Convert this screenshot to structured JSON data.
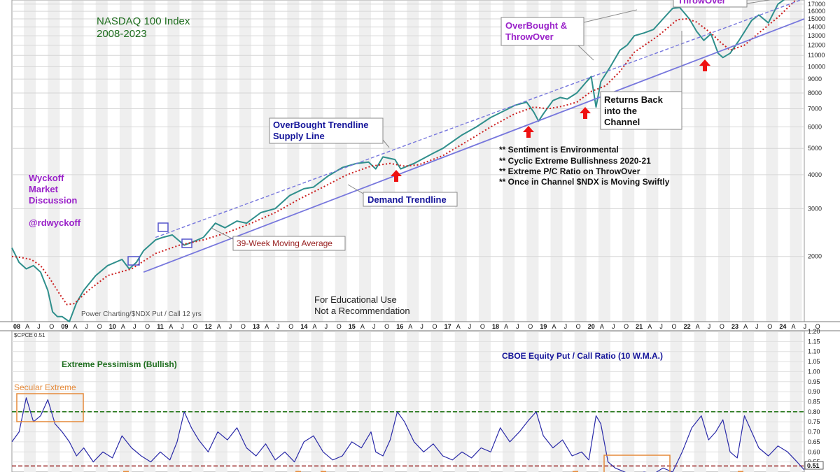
{
  "colors": {
    "title_green": "#1f6e1f",
    "purple": "#9a22c9",
    "navy": "#15159a",
    "price_teal": "#2f8f8c",
    "ma_red": "#cc1f1f",
    "trend_blue": "#7777dd",
    "pc_line": "#2a2aa8",
    "bull_line": "#2b7a1f",
    "bear_line": "#992222",
    "secular_orange": "#e58a3a",
    "arrow_red": "#ee1111"
  },
  "annotations": {
    "title_line1": "NASDAQ 100 Index",
    "title_line2": "2008-2023",
    "wyckoff_line1": "Wyckoff",
    "wyckoff_line2": "Market",
    "wyckoff_line3": "Discussion",
    "handle": "@rdwyckoff",
    "throwover_top": "ThrowOver",
    "overbought_line1": "OverBought &",
    "overbought_line2": "ThrowOver",
    "returns_line1": "Returns Back",
    "returns_line2": "into the",
    "returns_line3": "Channel",
    "supply_line1": "OverBought Trendline",
    "supply_line2": "Supply Line",
    "demand": "Demand Trendline",
    "ma_label": "39-Week Moving Average",
    "notes": [
      "** Sentiment is Environmental",
      "** Cyclic Extreme Bullishness 2020-21",
      "** Extreme P/C Ratio on ThrowOver",
      "** Once in Channel $NDX is Moving Swiftly"
    ],
    "edu_line1": "For Educational Use",
    "edu_line2": "Not a Recommendation",
    "credit": "Power Charting/$NDX Put / Call 12 yrs",
    "lower_title": "CBOE Equity Put / Call Ratio (10 W.M.A.)",
    "pessimism": "Extreme Pessimism (Bullish)",
    "secular": "Secular Extreme",
    "lower_symbol": "$CPCE 0.51",
    "last_value": "0.51"
  },
  "chart_data": [
    {
      "type": "line",
      "name": "NASDAQ 100 Index weekly (log scale)",
      "y_scale": "log",
      "y_ticks": [
        2000,
        3000,
        4000,
        5000,
        6000,
        7000,
        8000,
        9000,
        10000,
        11000,
        12000,
        13000,
        14000,
        15000,
        16000,
        17000
      ],
      "x_tick_labels": [
        "08",
        "A",
        "J",
        "O",
        "09",
        "A",
        "J",
        "O",
        "10",
        "A",
        "J",
        "O",
        "11",
        "A",
        "J",
        "O",
        "12",
        "A",
        "J",
        "O",
        "13",
        "A",
        "J",
        "O",
        "14",
        "A",
        "J",
        "O",
        "15",
        "A",
        "J",
        "O",
        "16",
        "A",
        "J",
        "O",
        "17",
        "A",
        "J",
        "O",
        "18",
        "A",
        "J",
        "O",
        "19",
        "A",
        "J",
        "O",
        "20",
        "A",
        "J",
        "O",
        "21",
        "A",
        "J",
        "O",
        "22",
        "A",
        "J",
        "O",
        "23",
        "A",
        "J",
        "O",
        "24",
        "A",
        "J",
        "O"
      ],
      "x_range": [
        2008.0,
        2024.55
      ],
      "ylim": [
        1150,
        17600
      ],
      "series": [
        {
          "role": "price",
          "x": [
            2008.0,
            2008.15,
            2008.3,
            2008.45,
            2008.6,
            2008.75,
            2008.85,
            2008.95,
            2009.05,
            2009.2,
            2009.35,
            2009.5,
            2009.75,
            2010.0,
            2010.3,
            2010.45,
            2010.6,
            2010.75,
            2011.0,
            2011.15,
            2011.35,
            2011.6,
            2011.75,
            2012.0,
            2012.25,
            2012.45,
            2012.7,
            2012.9,
            2013.2,
            2013.5,
            2013.8,
            2014.1,
            2014.3,
            2014.6,
            2014.9,
            2015.2,
            2015.45,
            2015.6,
            2015.75,
            2016.0,
            2016.12,
            2016.4,
            2016.8,
            2017.0,
            2017.4,
            2017.7,
            2018.0,
            2018.3,
            2018.5,
            2018.75,
            2018.9,
            2019.0,
            2019.1,
            2019.3,
            2019.45,
            2019.6,
            2019.8,
            2020.0,
            2020.1,
            2020.2,
            2020.3,
            2020.5,
            2020.7,
            2020.85,
            2021.0,
            2021.2,
            2021.4,
            2021.6,
            2021.8,
            2021.95,
            2022.15,
            2022.3,
            2022.45,
            2022.6,
            2022.75,
            2022.85,
            2023.0,
            2023.2,
            2023.45,
            2023.6,
            2023.8,
            2024.0,
            2024.2,
            2024.4
          ],
          "y": [
            2150,
            1900,
            1800,
            1850,
            1750,
            1500,
            1250,
            1200,
            1200,
            1150,
            1350,
            1500,
            1700,
            1850,
            1950,
            1800,
            1900,
            2100,
            2300,
            2350,
            2400,
            2200,
            2250,
            2350,
            2650,
            2550,
            2700,
            2650,
            2900,
            3000,
            3350,
            3550,
            3600,
            3950,
            4250,
            4400,
            4450,
            4200,
            4650,
            4550,
            4200,
            4400,
            4800,
            5000,
            5600,
            6000,
            6500,
            6900,
            7200,
            7400,
            6800,
            6300,
            6700,
            7500,
            7700,
            7600,
            8000,
            8800,
            9200,
            7100,
            8800,
            10000,
            11500,
            12000,
            13000,
            13300,
            13700,
            15000,
            16400,
            16500,
            15000,
            13500,
            12500,
            13200,
            11200,
            10800,
            11200,
            12600,
            14800,
            15500,
            14500,
            17000,
            18000,
            19200
          ]
        },
        {
          "role": "39-week moving average",
          "x": [
            2008.0,
            2008.2,
            2008.4,
            2008.6,
            2008.8,
            2009.0,
            2009.15,
            2009.3,
            2009.6,
            2010.0,
            2010.5,
            2011.0,
            2011.5,
            2012.0,
            2012.5,
            2013.0,
            2013.5,
            2014.0,
            2014.5,
            2015.0,
            2015.5,
            2015.9,
            2016.2,
            2016.5,
            2017.0,
            2017.5,
            2018.0,
            2018.5,
            2018.9,
            2019.2,
            2019.5,
            2019.8,
            2020.1,
            2020.4,
            2020.7,
            2021.0,
            2021.5,
            2021.9,
            2022.1,
            2022.3,
            2022.6,
            2022.8,
            2023.0,
            2023.3,
            2023.6,
            2024.0,
            2024.4
          ],
          "y": [
            2000,
            1980,
            1950,
            1850,
            1650,
            1450,
            1330,
            1340,
            1500,
            1700,
            1800,
            2050,
            2200,
            2300,
            2450,
            2650,
            2900,
            3250,
            3600,
            4000,
            4300,
            4400,
            4300,
            4350,
            4700,
            5300,
            6000,
            6700,
            7100,
            7000,
            7150,
            7400,
            8100,
            8500,
            9600,
            11300,
            13000,
            14900,
            15000,
            14600,
            13300,
            12300,
            11500,
            12000,
            13300,
            15200,
            17800
          ]
        },
        {
          "role": "Demand Trendline",
          "x": [
            2010.75,
            2024.55
          ],
          "y": [
            1750,
            15000
          ]
        },
        {
          "role": "OverBought Trendline Supply Line",
          "x": [
            2011.0,
            2024.55
          ],
          "y": [
            2350,
            17800
          ]
        }
      ]
    },
    {
      "type": "line",
      "name": "CBOE Equity Put / Call Ratio (10 W.M.A.)",
      "y_ticks": [
        0.55,
        0.6,
        0.65,
        0.7,
        0.75,
        0.8,
        0.85,
        0.9,
        0.95,
        1.0,
        1.05,
        1.1,
        1.15,
        1.2
      ],
      "ylim": [
        0.5,
        1.2
      ],
      "reference_lines": [
        0.8,
        0.53
      ],
      "x": [
        2008.0,
        2008.15,
        2008.3,
        2008.45,
        2008.6,
        2008.75,
        2008.9,
        2009.05,
        2009.2,
        2009.35,
        2009.5,
        2009.7,
        2009.9,
        2010.1,
        2010.3,
        2010.5,
        2010.7,
        2010.9,
        2011.1,
        2011.3,
        2011.45,
        2011.6,
        2011.75,
        2011.9,
        2012.1,
        2012.3,
        2012.5,
        2012.7,
        2012.9,
        2013.1,
        2013.3,
        2013.5,
        2013.7,
        2013.9,
        2014.1,
        2014.3,
        2014.5,
        2014.7,
        2014.9,
        2015.1,
        2015.3,
        2015.5,
        2015.6,
        2015.75,
        2015.9,
        2016.05,
        2016.2,
        2016.4,
        2016.6,
        2016.8,
        2017.0,
        2017.2,
        2017.4,
        2017.6,
        2017.8,
        2018.0,
        2018.2,
        2018.4,
        2018.6,
        2018.8,
        2018.95,
        2019.1,
        2019.3,
        2019.5,
        2019.7,
        2019.9,
        2020.05,
        2020.2,
        2020.3,
        2020.45,
        2020.6,
        2020.8,
        2021.0,
        2021.2,
        2021.4,
        2021.6,
        2021.8,
        2022.0,
        2022.2,
        2022.4,
        2022.55,
        2022.7,
        2022.85,
        2023.0,
        2023.15,
        2023.3,
        2023.45,
        2023.6,
        2023.8,
        2024.0,
        2024.2,
        2024.4,
        2024.55
      ],
      "values": [
        0.65,
        0.7,
        0.87,
        0.75,
        0.78,
        0.86,
        0.74,
        0.7,
        0.65,
        0.58,
        0.62,
        0.55,
        0.6,
        0.57,
        0.68,
        0.62,
        0.58,
        0.55,
        0.6,
        0.56,
        0.65,
        0.8,
        0.72,
        0.66,
        0.6,
        0.7,
        0.66,
        0.72,
        0.62,
        0.58,
        0.64,
        0.56,
        0.6,
        0.55,
        0.65,
        0.68,
        0.6,
        0.56,
        0.58,
        0.65,
        0.62,
        0.7,
        0.6,
        0.58,
        0.66,
        0.8,
        0.75,
        0.65,
        0.6,
        0.64,
        0.58,
        0.56,
        0.6,
        0.57,
        0.62,
        0.6,
        0.72,
        0.65,
        0.7,
        0.76,
        0.8,
        0.68,
        0.62,
        0.66,
        0.58,
        0.6,
        0.56,
        0.78,
        0.74,
        0.55,
        0.52,
        0.5,
        0.48,
        0.5,
        0.49,
        0.52,
        0.5,
        0.6,
        0.72,
        0.78,
        0.66,
        0.7,
        0.76,
        0.6,
        0.57,
        0.78,
        0.7,
        0.62,
        0.58,
        0.63,
        0.6,
        0.55,
        0.51
      ]
    }
  ]
}
